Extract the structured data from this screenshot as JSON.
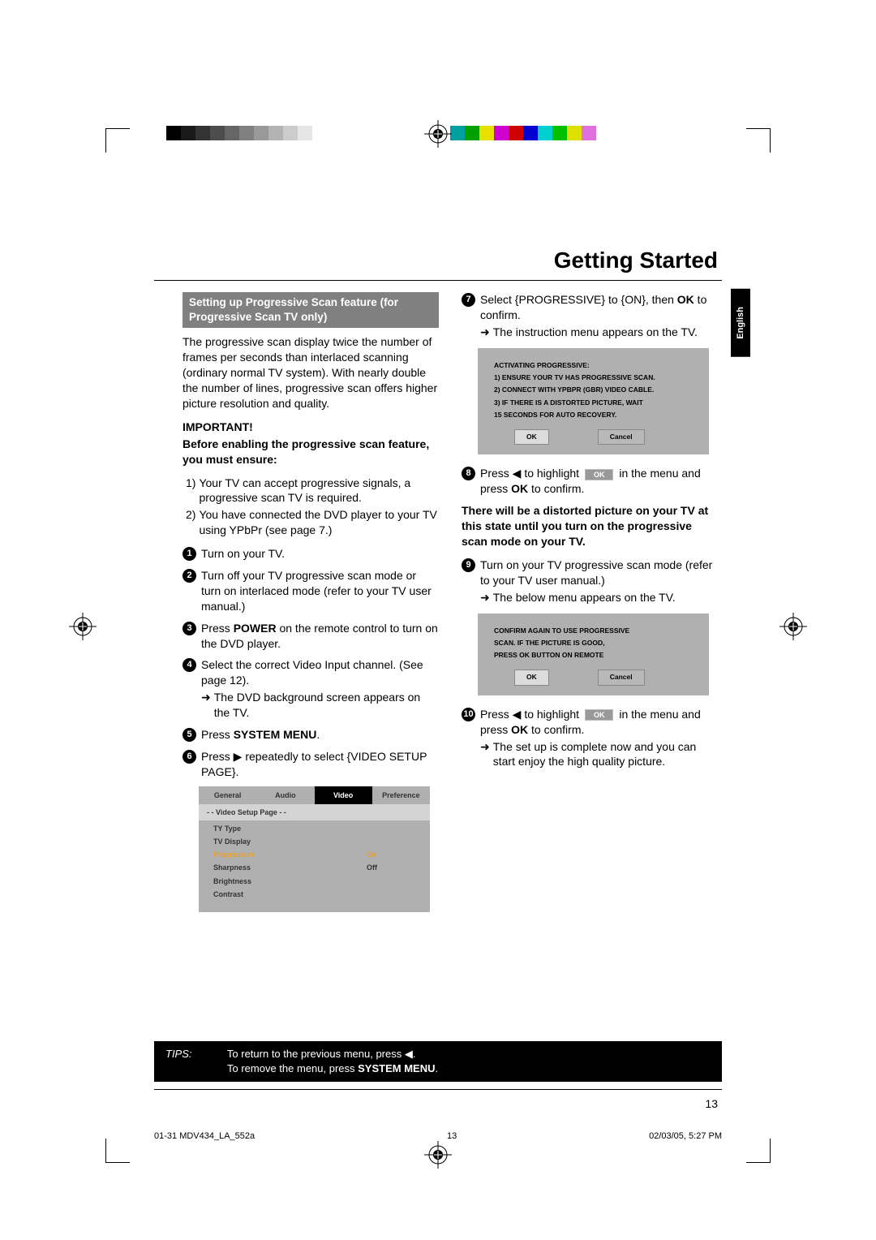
{
  "page_title": "Getting Started",
  "lang_tab": "English",
  "color_bars_left": [
    "#000000",
    "#1a1a1a",
    "#333333",
    "#4d4d4d",
    "#666666",
    "#808080",
    "#999999",
    "#b3b3b3",
    "#cccccc",
    "#e6e6e6",
    "#ffffff"
  ],
  "color_bars_right": [
    "#00a0a0",
    "#00a000",
    "#e8e000",
    "#d000d0",
    "#d00000",
    "#0000d0",
    "#00d0d0",
    "#00c000",
    "#e0e000",
    "#e070e0",
    "#ffffff"
  ],
  "left": {
    "section_head": "Setting up Progressive Scan feature (for Progressive Scan TV only)",
    "intro": "The progressive scan display twice the number of frames per seconds than interlaced scanning (ordinary normal TV system).  With nearly double the number of lines, progressive scan offers higher picture resolution and quality.",
    "important_label": "IMPORTANT!",
    "important_sub": "Before enabling the progressive scan feature, you must ensure:",
    "ensure": [
      {
        "n": "1)",
        "t": "Your TV can accept progressive signals, a progressive scan TV is required."
      },
      {
        "n": "2)",
        "t": "You have connected the DVD player to your TV using YPbPr (see page 7.)"
      }
    ],
    "steps": [
      {
        "n": "1",
        "t": "Turn on your TV."
      },
      {
        "n": "2",
        "t": "Turn off your TV progressive scan mode or turn on interlaced mode (refer to your TV user manual.)"
      },
      {
        "n": "3",
        "t": "Press <b>POWER</b> on the remote control to turn on the DVD player."
      },
      {
        "n": "4",
        "t": "Select the correct Video Input channel. (See page 12).",
        "sub": "The DVD background screen appears on the TV."
      },
      {
        "n": "5",
        "t": "Press <b>SYSTEM MENU</b>."
      },
      {
        "n": "6",
        "t": "Press ▶ repeatedly to select {VIDEO SETUP PAGE}."
      }
    ],
    "menu": {
      "tabs": [
        "General",
        "Audio",
        "Video",
        "Preference"
      ],
      "active_tab": 2,
      "subtitle": "- -   Video Setup Page   - -",
      "rows": [
        {
          "lbl": "TY Type",
          "val": ""
        },
        {
          "lbl": "TV Display",
          "val": ""
        },
        {
          "lbl": "Progressive",
          "val": "On",
          "sel": true
        },
        {
          "lbl": "Sharpness",
          "val": "Off"
        },
        {
          "lbl": "Brightness",
          "val": ""
        },
        {
          "lbl": "Contrast",
          "val": ""
        }
      ]
    }
  },
  "right": {
    "step7": {
      "n": "7",
      "t": "Select {PROGRESSIVE} to {ON}, then <b>OK</b> to confirm.",
      "sub": "The instruction menu appears on the TV."
    },
    "dialog1": {
      "lines": [
        "ACTIVATING PROGRESSIVE:",
        "1) ENSURE YOUR TV HAS PROGRESSIVE SCAN.",
        "2) CONNECT WITH YPBPR (GBR) VIDEO CABLE.",
        "3) IF THERE IS A DISTORTED PICTURE, WAIT",
        "    15 SECONDS FOR AUTO RECOVERY."
      ],
      "ok": "OK",
      "cancel": "Cancel"
    },
    "step8": {
      "n": "8",
      "pre": "Press ◀ to highlight ",
      "post": " in the menu and press <b>OK</b> to confirm."
    },
    "warn": "There will be a distorted picture on your TV at this state until you turn on the progressive scan mode on your TV.",
    "step9": {
      "n": "9",
      "t": "Turn on your TV progressive scan mode (refer to your TV user manual.)",
      "sub": "The below menu appears on the TV."
    },
    "dialog2": {
      "lines": [
        "CONFIRM AGAIN TO USE PROGRESSIVE",
        "SCAN.  IF THE PICTURE IS GOOD,",
        "PRESS OK BUTTON ON REMOTE"
      ],
      "ok": "OK",
      "cancel": "Cancel"
    },
    "step10": {
      "n": "10",
      "pre": "Press ◀ to highlight ",
      "post": " in the menu and press <b>OK</b> to confirm.",
      "sub": "The set up is complete now and you can start enjoy the high quality picture."
    }
  },
  "tips": {
    "label": "TIPS:",
    "line1": "To return to the previous menu, press ◀.",
    "line2_a": "To remove the menu, press ",
    "line2_b": "SYSTEM MENU",
    "line2_c": "."
  },
  "page_number": "13",
  "footer": {
    "doc": "01-31 MDV434_LA_552a",
    "pg": "13",
    "date": "02/03/05, 5:27 PM"
  }
}
